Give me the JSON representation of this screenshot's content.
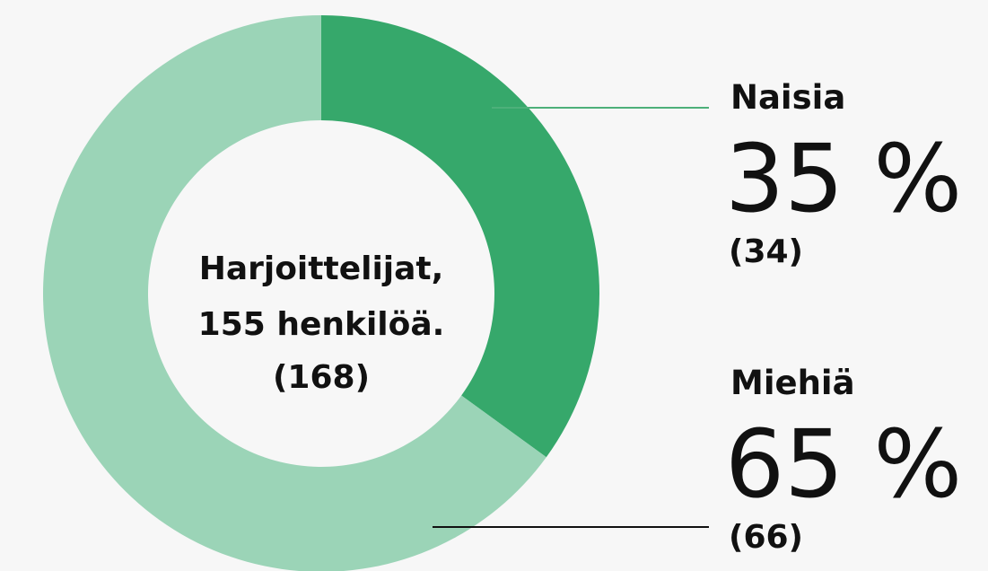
{
  "chart_data": {
    "type": "donut",
    "center_text": [
      "Harjoittelijat,",
      "155 henkilöä.",
      "(168)"
    ],
    "categories": [
      "Naisia",
      "Miehiä"
    ],
    "values": [
      35,
      65
    ],
    "value_labels": [
      "35 %",
      "65 %"
    ],
    "previous_labels": [
      "(34)",
      "(66)"
    ],
    "colors": [
      "#36a86b",
      "#9bd4b7"
    ],
    "leader_colors": [
      "#4db07a",
      "#111111"
    ]
  }
}
